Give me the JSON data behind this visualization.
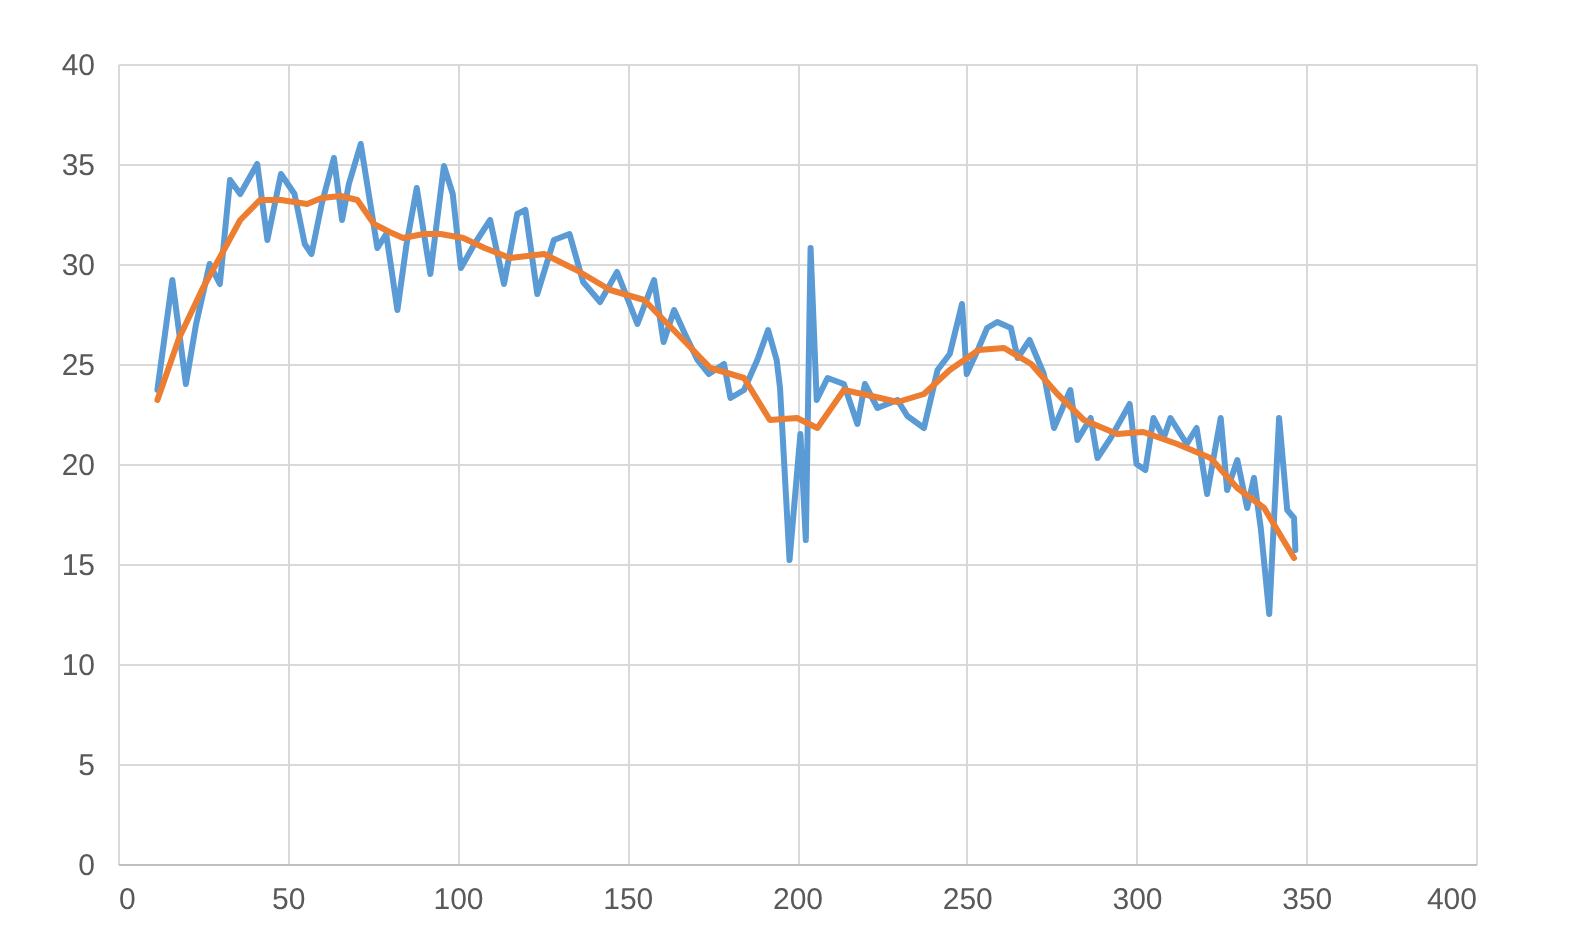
{
  "chart_data": {
    "type": "line",
    "xlim": [
      0,
      400
    ],
    "xticks": [
      0,
      50,
      100,
      150,
      200,
      250,
      300,
      350,
      400
    ],
    "ylim": [
      0,
      40
    ],
    "yticks": [
      0,
      5,
      10,
      15,
      20,
      25,
      30,
      35,
      40
    ],
    "grid": true,
    "marker": "none",
    "line_style": "solid",
    "series": [
      {
        "color": "#5b9bd5",
        "x": [
          11.6,
          16,
          20,
          23,
          27,
          30,
          33,
          36,
          41,
          44,
          48,
          52,
          55,
          57,
          60,
          63.6,
          66,
          68,
          71.5,
          76.4,
          79,
          82.3,
          85,
          88,
          92,
          96,
          98.6,
          101,
          105,
          109.6,
          113.7,
          117.6,
          120,
          123.5,
          128.4,
          133,
          137,
          142,
          147,
          153,
          157.9,
          160.7,
          163.8,
          167,
          170.7,
          174,
          178.5,
          180.4,
          184.4,
          188.3,
          191.5,
          194,
          195,
          197.8,
          201,
          202.6,
          204,
          205.8,
          209,
          213.8,
          217.8,
          220,
          223.7,
          229.6,
          232.5,
          237.4,
          241.4,
          245,
          248.6,
          250,
          253.5,
          256,
          259,
          263,
          265,
          268.5,
          272.7,
          275.7,
          280.5,
          282.6,
          286.5,
          288.5,
          292.4,
          298,
          300,
          302.6,
          305,
          308,
          310,
          314.8,
          317.7,
          320.8,
          324.8,
          326.7,
          329.7,
          332.6,
          334.6,
          336.6,
          339.1,
          342,
          344.4,
          346.4,
          346.8
        ],
        "values": [
          23.7,
          29.2,
          24,
          27,
          30,
          29,
          34.2,
          33.5,
          35,
          31.2,
          34.5,
          33.5,
          31,
          30.5,
          33,
          35.3,
          32.2,
          34,
          36,
          30.8,
          31.5,
          27.7,
          31,
          33.8,
          29.5,
          34.9,
          33.5,
          29.8,
          31,
          32.2,
          29,
          32.5,
          32.7,
          28.5,
          31.2,
          31.5,
          29.1,
          28.1,
          29.6,
          27,
          29.2,
          26.1,
          27.7,
          26.5,
          25.2,
          24.5,
          25,
          23.3,
          23.7,
          25.2,
          26.7,
          25.2,
          23.8,
          15.2,
          21.5,
          16.2,
          30.8,
          23.2,
          24.3,
          24,
          22,
          24,
          22.8,
          23.2,
          22.4,
          21.8,
          24.7,
          25.5,
          28,
          24.5,
          25.8,
          26.8,
          27.1,
          26.8,
          25.3,
          26.2,
          24.5,
          21.8,
          23.7,
          21.2,
          22.3,
          20.3,
          21.3,
          23,
          20,
          19.7,
          22.3,
          21.3,
          22.3,
          21,
          21.8,
          18.5,
          22.3,
          18.7,
          20.2,
          17.8,
          19.3,
          16.8,
          12.5,
          22.3,
          17.7,
          17.3,
          15.7
        ]
      },
      {
        "color": "#ed7d31",
        "x": [
          11.6,
          18,
          25,
          31.2,
          36,
          41.8,
          48,
          55.7,
          60,
          65.6,
          70.5,
          75.4,
          80,
          84,
          90,
          95,
          101.7,
          108,
          115.5,
          125.5,
          135,
          145,
          155,
          164.8,
          174.5,
          184.4,
          192,
          200,
          206,
          213.8,
          222,
          229.6,
          237.4,
          245,
          253.5,
          261,
          269,
          276.7,
          284.5,
          294.3,
          302,
          312,
          321.8,
          329.7,
          337.6,
          346.4
        ],
        "values": [
          23.2,
          26.3,
          28.8,
          30.7,
          32.2,
          33.2,
          33.2,
          33,
          33.3,
          33.4,
          33.2,
          32,
          31.6,
          31.3,
          31.5,
          31.5,
          31.3,
          30.8,
          30.3,
          30.5,
          29.7,
          28.7,
          28.2,
          26.5,
          24.8,
          24.3,
          22.2,
          22.3,
          21.8,
          23.7,
          23.4,
          23.1,
          23.5,
          24.7,
          25.7,
          25.8,
          25,
          23.5,
          22.2,
          21.5,
          21.6,
          21,
          20.3,
          18.8,
          17.8,
          15.3
        ]
      }
    ]
  }
}
